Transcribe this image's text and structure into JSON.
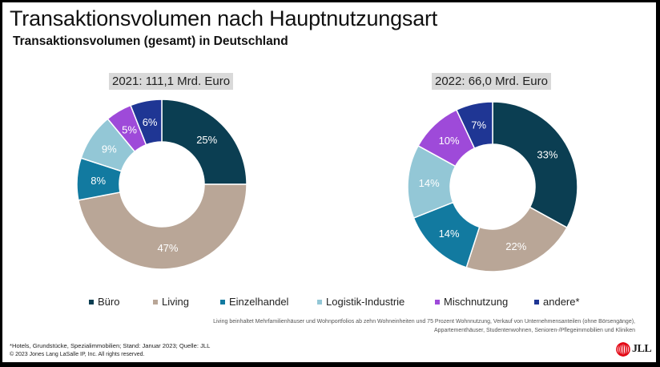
{
  "title": "Transaktionsvolumen nach Hauptnutzungsart",
  "subtitle": "Transaktionsvolumen (gesamt) in Deutschland",
  "colors": {
    "Büro": "#0b3e52",
    "Living": "#b9a697",
    "Einzelhandel": "#127aa0",
    "Logistik-Industrie": "#93c7d6",
    "Mischnutzung": "#9e4ad9",
    "andere*": "#1f3694"
  },
  "chart_data": [
    {
      "type": "pie",
      "donut": true,
      "title": "2021: 111,1 Mrd. Euro",
      "categories": [
        "Büro",
        "Living",
        "Einzelhandel",
        "Logistik-Industrie",
        "Mischnutzung",
        "andere*"
      ],
      "values": [
        25,
        47,
        8,
        9,
        5,
        6
      ],
      "labels": [
        "25%",
        "47%",
        "8%",
        "9%",
        "5%",
        "6%"
      ],
      "unit": "%"
    },
    {
      "type": "pie",
      "donut": true,
      "title": "2022: 66,0 Mrd. Euro",
      "categories": [
        "Büro",
        "Living",
        "Einzelhandel",
        "Logistik-Industrie",
        "Mischnutzung",
        "andere*"
      ],
      "values": [
        33,
        22,
        14,
        14,
        10,
        7
      ],
      "labels": [
        "33%",
        "22%",
        "14%",
        "14%",
        "10%",
        "7%"
      ],
      "unit": "%"
    }
  ],
  "legend": {
    "placement": "bottom",
    "items": [
      "Büro",
      "Living",
      "Einzelhandel",
      "Logistik-Industrie",
      "Mischnutzung",
      "andere*"
    ]
  },
  "note": {
    "line1": "Living beinhaltet Mehrfamilienhäuser und Wohnportfolios ab zehn Wohneinheiten und 75 Prozent Wohnnutzung, Verkauf von Unternehmensanteilen (ohne Börsengänge),",
    "line2": "Appartementhäuser, Studentenwohnen, Senioren-/Pflegeimmobilien und Kliniken"
  },
  "footer": {
    "source": "*Hotels, Grundstücke, Spezialimmobilien; Stand: Januar 2023; Quelle: JLL",
    "copyright": "© 2023 Jones Lang LaSalle IP, Inc. All rights reserved."
  },
  "logo": {
    "text": "JLL",
    "color": "#e30613"
  }
}
